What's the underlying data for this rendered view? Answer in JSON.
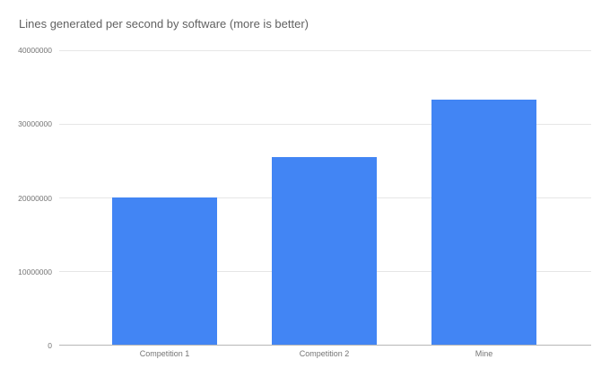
{
  "chart_data": {
    "type": "bar",
    "title": "Lines generated per second by software (more is better)",
    "categories": [
      "Competition 1",
      "Competition 2",
      "Mine"
    ],
    "values": [
      20000000,
      25500000,
      33300000
    ],
    "xlabel": "",
    "ylabel": "",
    "ylim": [
      0,
      40000000
    ],
    "yticks": [
      0,
      10000000,
      20000000,
      30000000,
      40000000
    ],
    "ytick_labels": [
      "0",
      "10000000",
      "20000000",
      "30000000",
      "40000000"
    ],
    "grid": true,
    "legend_position": "none",
    "colors": {
      "bar": "#4285f4",
      "gridline": "#e6e6e6",
      "axis_line": "#b7b7b7",
      "title_text": "#616161",
      "tick_text": "#757575",
      "background": "#ffffff"
    }
  }
}
